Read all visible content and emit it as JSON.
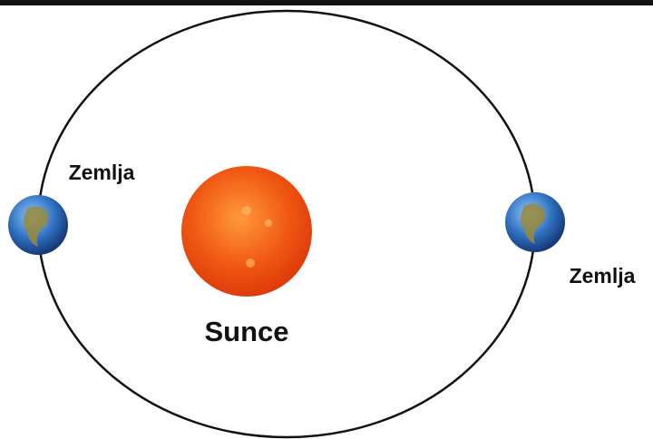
{
  "nodes": [
    {
      "label": "Zemlja"
    },
    {
      "label": "Sunce"
    },
    {
      "label": "Zemlja"
    }
  ]
}
